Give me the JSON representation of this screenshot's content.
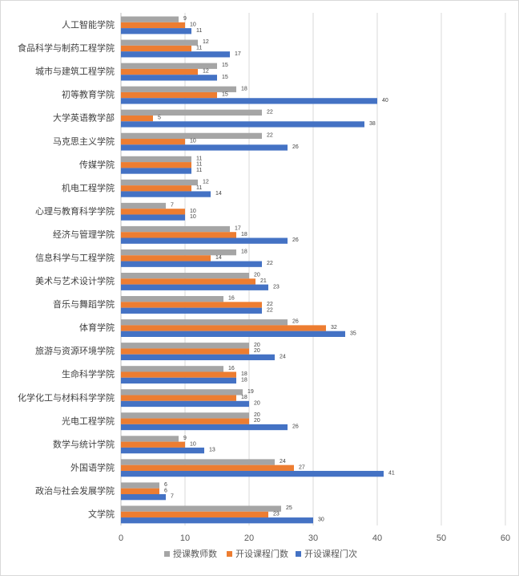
{
  "chart_data": {
    "type": "bar",
    "orientation": "horizontal",
    "categories": [
      "人工智能学院",
      "食品科学与制药工程学院",
      "城市与建筑工程学院",
      "初等教育学院",
      "大学英语教学部",
      "马克思主义学院",
      "传媒学院",
      "机电工程学院",
      "心理与教育科学学院",
      "经济与管理学院",
      "信息科学与工程学院",
      "美术与艺术设计学院",
      "音乐与舞蹈学院",
      "体育学院",
      "旅游与资源环境学院",
      "生命科学学院",
      "化学化工与材料科学学院",
      "光电工程学院",
      "数学与统计学院",
      "外国语学院",
      "政治与社会发展学院",
      "文学院"
    ],
    "series": [
      {
        "name": "授课教师数",
        "color": "#a5a5a5",
        "values": [
          9,
          12,
          15,
          18,
          22,
          22,
          11,
          12,
          7,
          17,
          18,
          20,
          16,
          26,
          20,
          16,
          19,
          20,
          9,
          24,
          6,
          25
        ]
      },
      {
        "name": "开设课程门数",
        "color": "#ed7d31",
        "values": [
          10,
          11,
          12,
          15,
          5,
          10,
          11,
          11,
          10,
          18,
          14,
          21,
          22,
          32,
          20,
          18,
          18,
          20,
          10,
          27,
          6,
          23
        ]
      },
      {
        "name": "开设课程门次",
        "color": "#4472c4",
        "values": [
          11,
          17,
          15,
          40,
          38,
          26,
          11,
          14,
          10,
          26,
          22,
          23,
          22,
          35,
          24,
          18,
          20,
          26,
          13,
          41,
          7,
          30
        ]
      }
    ],
    "xlim": [
      0,
      60
    ],
    "xticks": [
      0,
      10,
      20,
      30,
      40,
      50,
      60
    ],
    "grid": true,
    "legend": "bottom",
    "data_labels": true
  }
}
